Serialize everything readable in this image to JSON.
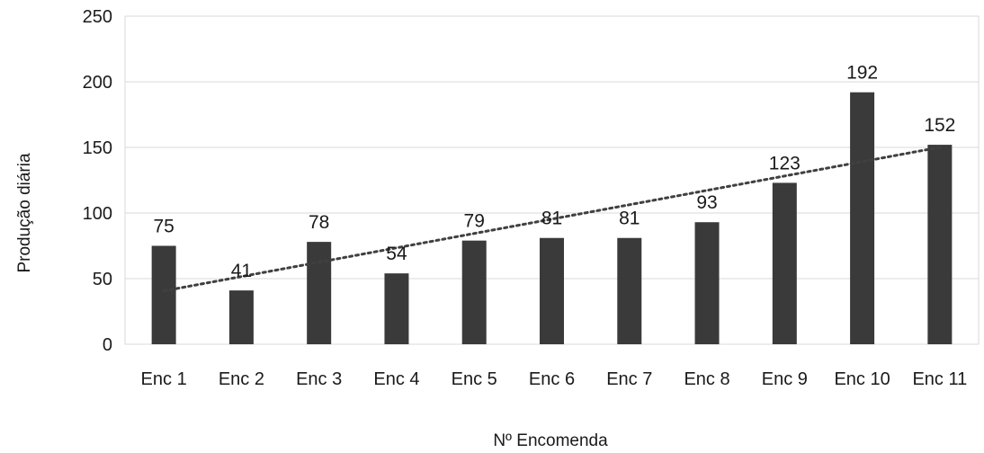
{
  "chart_data": {
    "type": "bar",
    "title": "",
    "xlabel": "Nº Encomenda",
    "ylabel": "Produção diária",
    "categories": [
      "Enc 1",
      "Enc 2",
      "Enc 3",
      "Enc 4",
      "Enc 5",
      "Enc 6",
      "Enc 7",
      "Enc 8",
      "Enc 9",
      "Enc 10",
      "Enc 11"
    ],
    "values": [
      75,
      41,
      78,
      54,
      79,
      81,
      81,
      93,
      123,
      192,
      152
    ],
    "ylim": [
      0,
      250
    ],
    "yticks": [
      "0",
      "50",
      "100",
      "150",
      "200",
      "250"
    ],
    "grid": true,
    "trendline": "linear",
    "colors": {
      "bar": "#3a3a3a",
      "grid": "#d9d9d9",
      "trend": "#404040"
    }
  }
}
